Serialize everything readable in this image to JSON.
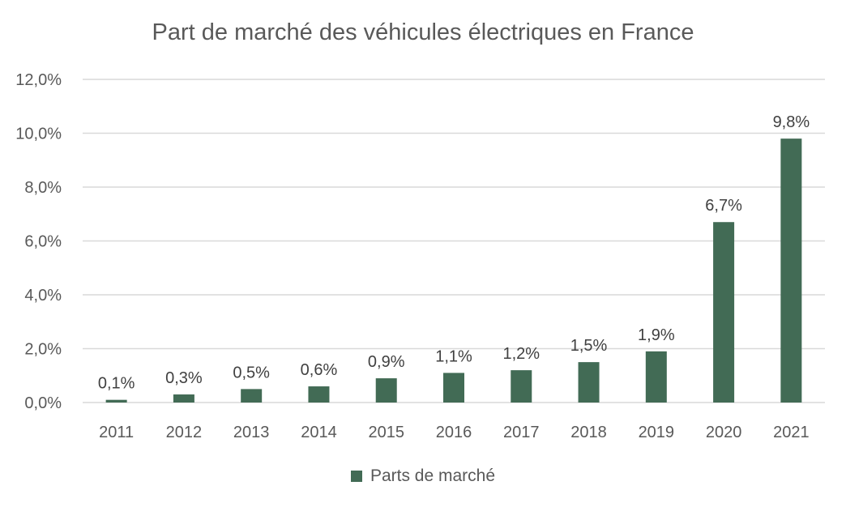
{
  "chart_data": {
    "type": "bar",
    "title": "Part de marché des véhicules électriques en France",
    "categories": [
      "2011",
      "2012",
      "2013",
      "2014",
      "2015",
      "2016",
      "2017",
      "2018",
      "2019",
      "2020",
      "2021"
    ],
    "series": [
      {
        "name": "Parts de marché",
        "values": [
          0.1,
          0.3,
          0.5,
          0.6,
          0.9,
          1.1,
          1.2,
          1.5,
          1.9,
          6.7,
          9.8
        ],
        "labels": [
          "0,1%",
          "0,3%",
          "0,5%",
          "0,6%",
          "0,9%",
          "1,1%",
          "1,2%",
          "1,5%",
          "1,9%",
          "6,7%",
          "9,8%"
        ],
        "color": "#426b55"
      }
    ],
    "ylim": [
      0,
      12
    ],
    "yticks": [
      0,
      2,
      4,
      6,
      8,
      10,
      12
    ],
    "ytick_labels": [
      "0,0%",
      "2,0%",
      "4,0%",
      "6,0%",
      "8,0%",
      "10,0%",
      "12,0%"
    ],
    "grid": true,
    "gridline_color": "#d9d9d9",
    "legend_position": "bottom"
  }
}
